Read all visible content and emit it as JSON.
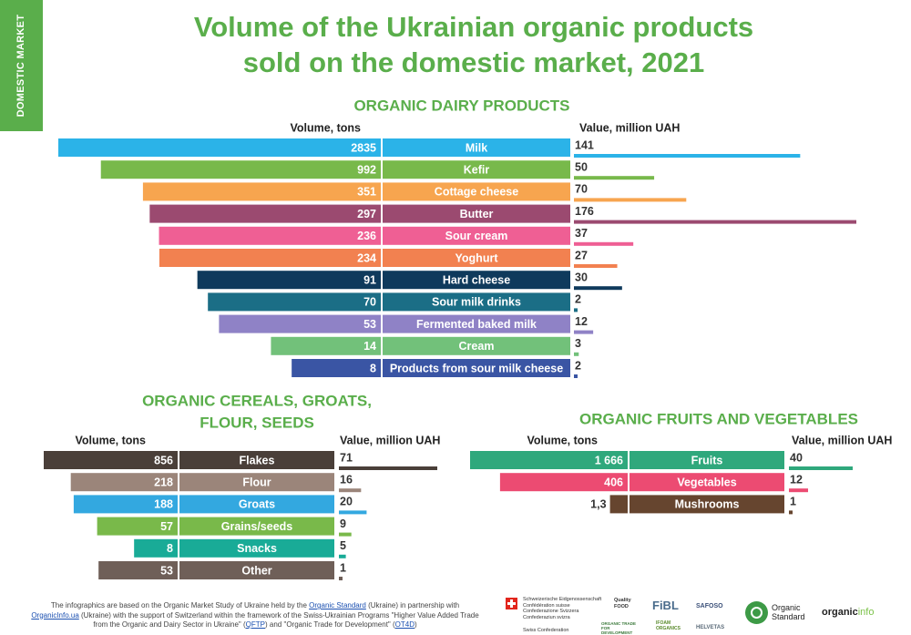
{
  "side_tab": "DOMESTIC MARKET",
  "title_line1": "Volume of the Ukrainian organic products",
  "title_line2": "sold on the domestic market, 2021",
  "chart_data": [
    {
      "type": "bar",
      "title": "ORGANIC DAIRY PRODUCTS",
      "volume_label": "Volume, tons",
      "value_label": "Value, million UAH",
      "categories": [
        "Milk",
        "Kefir",
        "Cottage cheese",
        "Butter",
        "Sour cream",
        "Yoghurt",
        "Hard cheese",
        "Sour milk drinks",
        "Fermented baked milk",
        "Cream",
        "Products from sour milk cheese"
      ],
      "volume_display": [
        "2835",
        "992",
        "351",
        "297",
        "236",
        "234",
        "91",
        "70",
        "53",
        "14",
        "8"
      ],
      "volume": [
        2835,
        992,
        351,
        297,
        236,
        234,
        91,
        70,
        53,
        14,
        8
      ],
      "value_display": [
        "141",
        "50",
        "70",
        "176",
        "37",
        "27",
        "30",
        "2",
        "12",
        "3",
        "2"
      ],
      "value": [
        141,
        50,
        70,
        176,
        37,
        27,
        30,
        2,
        12,
        3,
        2
      ],
      "colors": [
        "#2bb3e8",
        "#78b94b",
        "#f7a54f",
        "#9b4a70",
        "#ef5f94",
        "#f28150",
        "#0f3a5c",
        "#1b6e86",
        "#8f82c6",
        "#72c17a",
        "#3a55a4"
      ]
    },
    {
      "type": "bar",
      "title": "ORGANIC CEREALS, GROATS, FLOUR, SEEDS",
      "title_lines": [
        "ORGANIC CEREALS, GROATS,",
        "FLOUR, SEEDS"
      ],
      "volume_label": "Volume, tons",
      "value_label": "Value, million UAH",
      "categories": [
        "Flakes",
        "Flour",
        "Groats",
        "Grains/seeds",
        "Snacks",
        "Other"
      ],
      "volume_display": [
        "856",
        "218",
        "188",
        "57",
        "8",
        "53"
      ],
      "volume": [
        856,
        218,
        188,
        57,
        8,
        53
      ],
      "value_display": [
        "71",
        "16",
        "20",
        "9",
        "5",
        "1"
      ],
      "value": [
        71,
        16,
        20,
        9,
        5,
        1
      ],
      "colors": [
        "#4a3f39",
        "#9b857a",
        "#33a8e0",
        "#79b94a",
        "#19ab97",
        "#6f5f58"
      ]
    },
    {
      "type": "bar",
      "title": "ORGANIC FRUITS AND VEGETABLES",
      "volume_label": "Volume, tons",
      "value_label": "Value, million UAH",
      "categories": [
        "Fruits",
        "Vegetables",
        "Mushrooms"
      ],
      "volume_display": [
        "1 666",
        "406",
        "1,3"
      ],
      "volume": [
        1666,
        406,
        1.3
      ],
      "value_display": [
        "40",
        "12",
        "1"
      ],
      "value": [
        40,
        12,
        1
      ],
      "colors": [
        "#2fa87c",
        "#ec4b72",
        "#66452f"
      ]
    }
  ],
  "footer": {
    "t1": "The infographics are based on the Organic Market Study of Ukraine held by the ",
    "l1": "Organic Standard",
    "t2": " (Ukraine) in partnership with ",
    "l2": "OrganicInfo.ua",
    "t3": " (Ukraine) with the support of Switzerland within the framework of the Swiss-Ukrainian Programs \"Higher Value Added Trade from the Organic and Dairy Sector in Ukraine\" (",
    "l3": "QFTP",
    "t4": ") and \"Organic Trade for Development\" (",
    "l4": "OT4D",
    "t5": ")"
  },
  "logos": {
    "swiss_lines": [
      "Schweizerische Eidgenossenschaft",
      "Confédération suisse",
      "Confederazione Svizzera",
      "Confederaziun svizra"
    ],
    "swiss_bottom": "Swiss Confederation",
    "quality_food": "Quality FOOD",
    "fibl": "FiBL",
    "safoso": "SAFOSO",
    "organic_trade": "ORGANIC TRADE FOR DEVELOPMENT",
    "ifoam": "IFOAM ORGANICS",
    "helvetas": "HELVETAS",
    "organic_standard_1": "Organic",
    "organic_standard_2": "Standard",
    "organic_info_1": "organic",
    "organic_info_2": "info"
  }
}
